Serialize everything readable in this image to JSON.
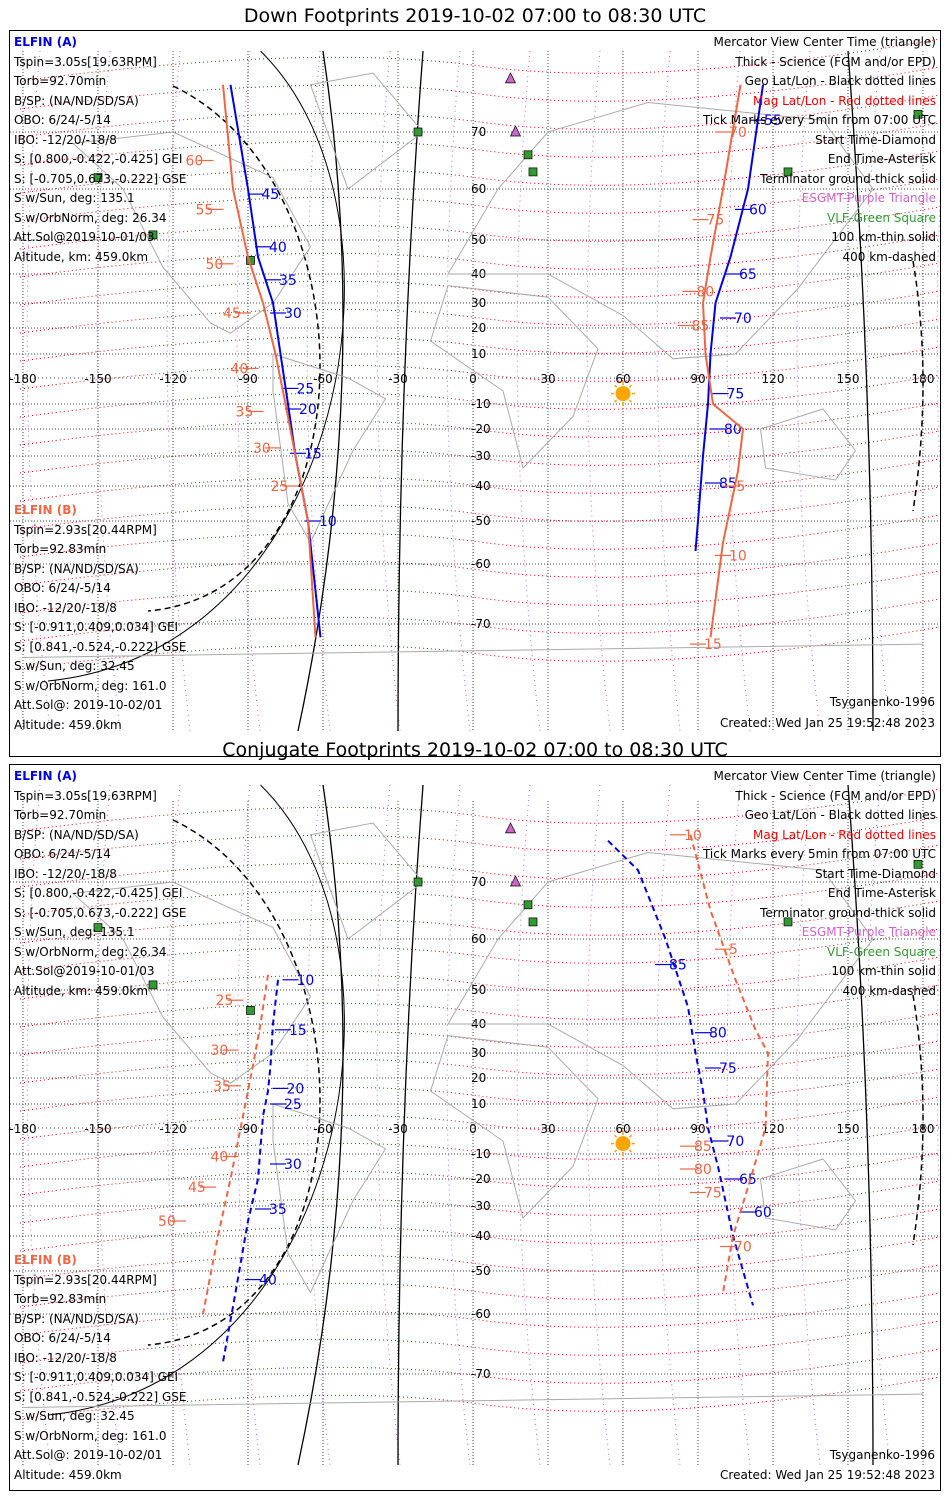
{
  "colors": {
    "elfin_a": "#0000dd",
    "elfin_b": "#ee6644",
    "grid": "#444444",
    "mag": "#ee0000",
    "esgmt": "#cc66cc",
    "vlf": "#339933",
    "sun": "#ffa500",
    "coast": "#aaaaaa"
  },
  "axis_lon": [
    "-180",
    "-150",
    "-120",
    "-90",
    "-60",
    "-30",
    "0",
    "30",
    "60",
    "90",
    "120",
    "150",
    "180"
  ],
  "axis_lat": [
    "70",
    "60",
    "50",
    "40",
    "30",
    "20",
    "10",
    "0",
    "-10",
    "-20",
    "-30",
    "-40",
    "-50",
    "-60",
    "-70"
  ],
  "info_a": {
    "header": "ELFIN (A)",
    "lines": [
      "Tspin=3.05s[19.63RPM]",
      "Torb=92.70min",
      "B/SP: (NA/ND/SD/SA)",
      "OBO: 6/24/-5/14",
      "IBO: -12/20/-18/8",
      "S: [0.800,-0.422,-0.425] GEI",
      "S: [-0.705,0.673,-0.222] GSE",
      "S w/Sun, deg: 135.1",
      "S w/OrbNorm, deg: 26.34",
      "Att.Sol@2019-10-01/03",
      "Altitude, km: 459.0km"
    ]
  },
  "info_b": {
    "header": "ELFIN (B)",
    "lines": [
      "Tspin=2.93s[20.44RPM]",
      "Torb=92.83min",
      "B/SP: (NA/ND/SD/SA)",
      "OBO: 6/24/-5/14",
      "IBO: -12/20/-18/8",
      "S: [-0.911,0.409,0.034] GEI",
      "S: [0.841,-0.524,-0.222] GSE",
      "S w/Sun, deg: 32.45",
      "S w/OrbNorm, deg: 161.0",
      "Att.Sol@: 2019-10-02/01",
      "Altitude: 459.0km"
    ]
  },
  "legend": [
    "Mercator View Center Time (triangle)",
    "Thick - Science (FGM and/or EPD)",
    "Geo Lat/Lon - Black dotted lines",
    "Mag Lat/Lon - Red dotted lines",
    "Tick Marks every 5min from 07:00 UTC",
    "Start Time-Diamond",
    "End Time-Asterisk",
    "Terminator ground-thick solid",
    "ESGMT-Purple Triangle",
    "VLF-Green Square",
    "100 km-thin solid",
    "400 km-dashed"
  ],
  "model_label": "Tsyganenko-1996",
  "created_label": "Created: Wed Jan 25 19:52:48 2023",
  "panels": [
    {
      "title": "Down Footprints 2019-10-02 07:00 to 08:30 UTC",
      "track_a": {
        "points": [
          [
            -97,
            78
          ],
          [
            -90,
            60
          ],
          [
            -86,
            45
          ],
          [
            -80,
            30
          ],
          [
            -77,
            10
          ],
          [
            -74,
            -10
          ],
          [
            -71,
            -30
          ],
          [
            -66,
            -50
          ],
          [
            -61,
            -72
          ]
        ],
        "labels": [
          [
            "45",
            -87,
            59
          ],
          [
            "40",
            -84,
            48
          ],
          [
            "35",
            -80,
            38
          ],
          [
            "30",
            -78,
            26
          ],
          [
            "25",
            -73,
            -4
          ],
          [
            "20",
            -72,
            -12
          ],
          [
            "15",
            -70,
            -29
          ],
          [
            "10",
            -64,
            -50
          ]
        ],
        "dashed": false
      },
      "track_b": {
        "points": [
          [
            -100,
            78
          ],
          [
            -96,
            60
          ],
          [
            -90,
            45
          ],
          [
            -84,
            30
          ],
          [
            -79,
            10
          ],
          [
            -75,
            -10
          ],
          [
            -71,
            -30
          ],
          [
            -66,
            -50
          ],
          [
            -63,
            -72
          ]
        ],
        "labels": [
          [
            "60",
            -107,
            65
          ],
          [
            "55",
            -103,
            56
          ],
          [
            "50",
            -99,
            43
          ],
          [
            "45",
            -92,
            26
          ],
          [
            "40",
            -89,
            4
          ],
          [
            "35",
            -87,
            -13
          ],
          [
            "30",
            -80,
            -27
          ],
          [
            "25",
            -73,
            -40
          ]
        ],
        "dashed": false
      },
      "track_a_east": {
        "points": [
          [
            116,
            78
          ],
          [
            110,
            60
          ],
          [
            103,
            45
          ],
          [
            97,
            30
          ],
          [
            95,
            10
          ],
          [
            94,
            -10
          ],
          [
            92,
            -30
          ],
          [
            90,
            -50
          ],
          [
            89,
            -57
          ]
        ],
        "labels": [
          [
            "55",
            114,
            72
          ],
          [
            "60",
            108,
            56
          ],
          [
            "65",
            104,
            40
          ],
          [
            "70",
            102,
            24
          ],
          [
            "75",
            99,
            -6
          ],
          [
            "80",
            98,
            -20
          ],
          [
            "85",
            96,
            -39
          ]
        ],
        "dashed": false
      },
      "track_b_east": {
        "points": [
          [
            107,
            78
          ],
          [
            100,
            60
          ],
          [
            95,
            45
          ],
          [
            92,
            30
          ],
          [
            93,
            10
          ],
          [
            96,
            -10
          ],
          [
            108,
            -20
          ],
          [
            106,
            -35
          ],
          [
            100,
            -55
          ],
          [
            95,
            -72
          ]
        ],
        "labels": [
          [
            "70",
            100,
            70
          ],
          [
            "75",
            91,
            54
          ],
          [
            "80",
            87,
            34
          ],
          [
            "85",
            85,
            21
          ],
          [
            "5",
            103,
            -40
          ],
          [
            "10",
            100,
            -58
          ],
          [
            "15",
            90,
            -73
          ]
        ],
        "dashed": false
      }
    },
    {
      "title": "Conjugate Footprints 2019-10-02 07:00 to 08:30 UTC",
      "track_a": {
        "points": [
          [
            -78,
            52
          ],
          [
            -80,
            40
          ],
          [
            -81,
            25
          ],
          [
            -82,
            15
          ],
          [
            -84,
            5
          ],
          [
            -86,
            -20
          ],
          [
            -90,
            -35
          ],
          [
            -95,
            -55
          ],
          [
            -100,
            -68
          ]
        ],
        "labels": [
          [
            "10",
            -73,
            52
          ],
          [
            "15",
            -76,
            38
          ],
          [
            "20",
            -77,
            16
          ],
          [
            "25",
            -78,
            10
          ],
          [
            "30",
            -78,
            -14
          ],
          [
            "35",
            -84,
            -31
          ],
          [
            "40",
            -88,
            -52
          ]
        ],
        "dashed": true
      },
      "track_b": {
        "points": [
          [
            -82,
            53
          ],
          [
            -85,
            40
          ],
          [
            -88,
            25
          ],
          [
            -92,
            5
          ],
          [
            -97,
            -20
          ],
          [
            -102,
            -40
          ],
          [
            -108,
            -60
          ]
        ],
        "labels": [
          [
            "25",
            -95,
            47
          ],
          [
            "30",
            -97,
            31
          ],
          [
            "35",
            -96,
            17
          ],
          [
            "40",
            -97,
            -11
          ],
          [
            "45",
            -106,
            -23
          ],
          [
            "50",
            -118,
            -35
          ]
        ],
        "dashed": true
      },
      "track_a_east": {
        "points": [
          [
            54,
            77
          ],
          [
            66,
            72
          ],
          [
            77,
            60
          ],
          [
            86,
            45
          ],
          [
            89,
            30
          ],
          [
            92,
            15
          ],
          [
            94,
            0
          ],
          [
            98,
            -15
          ],
          [
            104,
            -40
          ],
          [
            112,
            -58
          ]
        ],
        "labels": [
          [
            "85",
            76,
            55
          ],
          [
            "80",
            92,
            37
          ],
          [
            "75",
            96,
            24
          ],
          [
            "70",
            99,
            -5
          ],
          [
            "65",
            104,
            -20
          ],
          [
            "60",
            110,
            -32
          ]
        ],
        "dashed": true
      },
      "track_b_east": {
        "points": [
          [
            87,
            78
          ],
          [
            95,
            65
          ],
          [
            105,
            52
          ],
          [
            113,
            38
          ],
          [
            118,
            30
          ],
          [
            117,
            0
          ],
          [
            111,
            -20
          ],
          [
            104,
            -40
          ],
          [
            100,
            -55
          ]
        ],
        "labels": [
          [
            "10",
            82,
            78
          ],
          [
            "5",
            100,
            58
          ],
          [
            "85",
            86,
            -7
          ],
          [
            "80",
            86,
            -16
          ],
          [
            "75",
            90,
            -25
          ],
          [
            "70",
            102,
            -43
          ]
        ],
        "dashed": true
      }
    }
  ]
}
